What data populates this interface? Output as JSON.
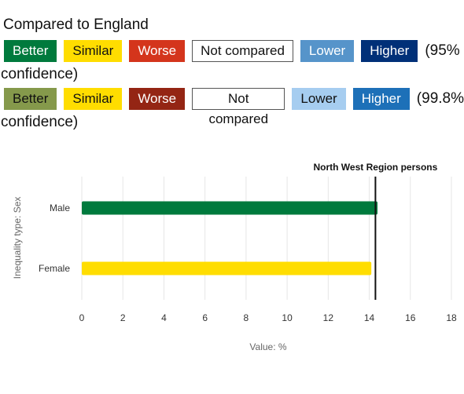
{
  "legend": {
    "title": "Compared to England",
    "row1": {
      "badges": [
        {
          "label": "Better",
          "bg": "#007a3d",
          "fg": "#ffffff"
        },
        {
          "label": "Similar",
          "bg": "#ffdd00",
          "fg": "#111111"
        },
        {
          "label": "Worse",
          "bg": "#d4351c",
          "fg": "#ffffff"
        },
        {
          "label": "Not compared",
          "bg": "#ffffff",
          "fg": "#111111"
        },
        {
          "label": "Lower",
          "bg": "#5694ca",
          "fg": "#ffffff"
        },
        {
          "label": "Higher",
          "bg": "#003078",
          "fg": "#ffffff"
        }
      ],
      "confidence_tail": "(95%",
      "confidence_wrap": "confidence)"
    },
    "row2": {
      "badges": [
        {
          "label": "Better",
          "bg": "#85994b",
          "fg": "#111111"
        },
        {
          "label": "Similar",
          "bg": "#ffdd00",
          "fg": "#111111"
        },
        {
          "label": "Worse",
          "bg": "#942514",
          "fg": "#ffffff"
        },
        {
          "label": "Not compared",
          "bg": "#ffffff",
          "fg": "#111111"
        },
        {
          "label": "Lower",
          "bg": "#a6cdf0",
          "fg": "#111111"
        },
        {
          "label": "Higher",
          "bg": "#1d70b8",
          "fg": "#ffffff"
        }
      ],
      "confidence_tail": "(99.8%",
      "confidence_wrap": "confidence)"
    }
  },
  "chart_data": {
    "type": "bar",
    "orientation": "horizontal",
    "categories": [
      "Male",
      "Female"
    ],
    "values": [
      14.4,
      14.1
    ],
    "bar_colors": [
      "#007a3d",
      "#ffdd00"
    ],
    "xlabel": "Value: %",
    "ylabel": "Inequality type: Sex",
    "xlim": [
      0,
      18
    ],
    "xticks": [
      0,
      2,
      4,
      6,
      8,
      10,
      12,
      14,
      16,
      18
    ],
    "grid": true,
    "reference_line": {
      "label": "North West Region persons",
      "value": 14.3
    }
  }
}
